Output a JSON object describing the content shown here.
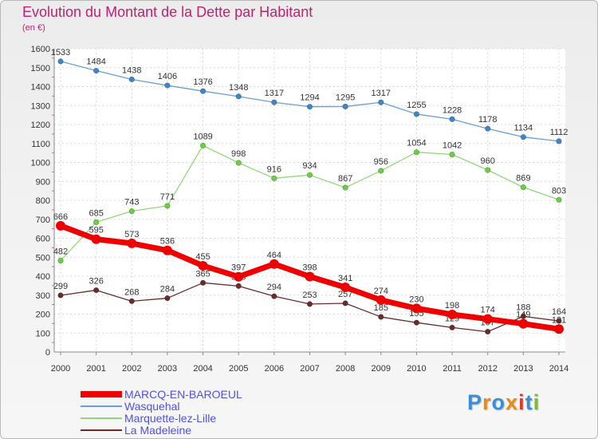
{
  "chart_data": {
    "type": "line",
    "title": "Evolution du Montant de la Dette par Habitant",
    "subtitle": "(en €)",
    "categories": [
      "2000",
      "2001",
      "2002",
      "2003",
      "2004",
      "2005",
      "2006",
      "2007",
      "2008",
      "2009",
      "2010",
      "2011",
      "2012",
      "2013",
      "2014"
    ],
    "ylim": [
      0,
      1600
    ],
    "yticks": [
      0,
      100,
      200,
      300,
      400,
      500,
      600,
      700,
      800,
      900,
      1000,
      1100,
      1200,
      1300,
      1400,
      1500,
      1600
    ],
    "grid": true,
    "legend_position": "bottom-left",
    "series": [
      {
        "name": "Wasquehal",
        "color": "#6a9fd3",
        "marker": "#3f86c9",
        "values": [
          1533,
          1484,
          1438,
          1406,
          1376,
          1348,
          1317,
          1294,
          1295,
          1317,
          1255,
          1228,
          1178,
          1134,
          1112
        ]
      },
      {
        "name": "Marquette-lez-Lille",
        "color": "#92d87a",
        "marker": "#6bcf42",
        "values": [
          482,
          685,
          743,
          771,
          1089,
          998,
          916,
          934,
          867,
          956,
          1054,
          1042,
          960,
          869,
          803
        ]
      },
      {
        "name": "La Madeleine",
        "color": "#6a2b2b",
        "marker": "#6a2b2b",
        "values": [
          299,
          326,
          268,
          284,
          365,
          348,
          294,
          253,
          257,
          185,
          155,
          129,
          107,
          188,
          164
        ]
      },
      {
        "name": "MARCQ-EN-BAROEUL",
        "color": "#ee0000",
        "marker": "#ee0000",
        "values": [
          666,
          595,
          573,
          536,
          455,
          397,
          464,
          398,
          341,
          274,
          230,
          198,
          174,
          149,
          121
        ]
      }
    ]
  },
  "legend": {
    "items": [
      {
        "label": "MARCQ-EN-BAROEUL",
        "color": "#ee0000",
        "width": 8
      },
      {
        "label": "Wasquehal",
        "color": "#6a9fd3",
        "width": 1.5
      },
      {
        "label": "Marquette-lez-Lille",
        "color": "#92d87a",
        "width": 1.5
      },
      {
        "label": "La Madeleine",
        "color": "#6a2b2b",
        "width": 1.5
      }
    ]
  },
  "logo": {
    "text": "Proxiti",
    "colors": [
      "#3a8fd9",
      "#e98b1a",
      "#3a8fd9",
      "#e98b1a",
      "#e33b2a",
      "#3a8fd9",
      "#7abf2a"
    ]
  }
}
